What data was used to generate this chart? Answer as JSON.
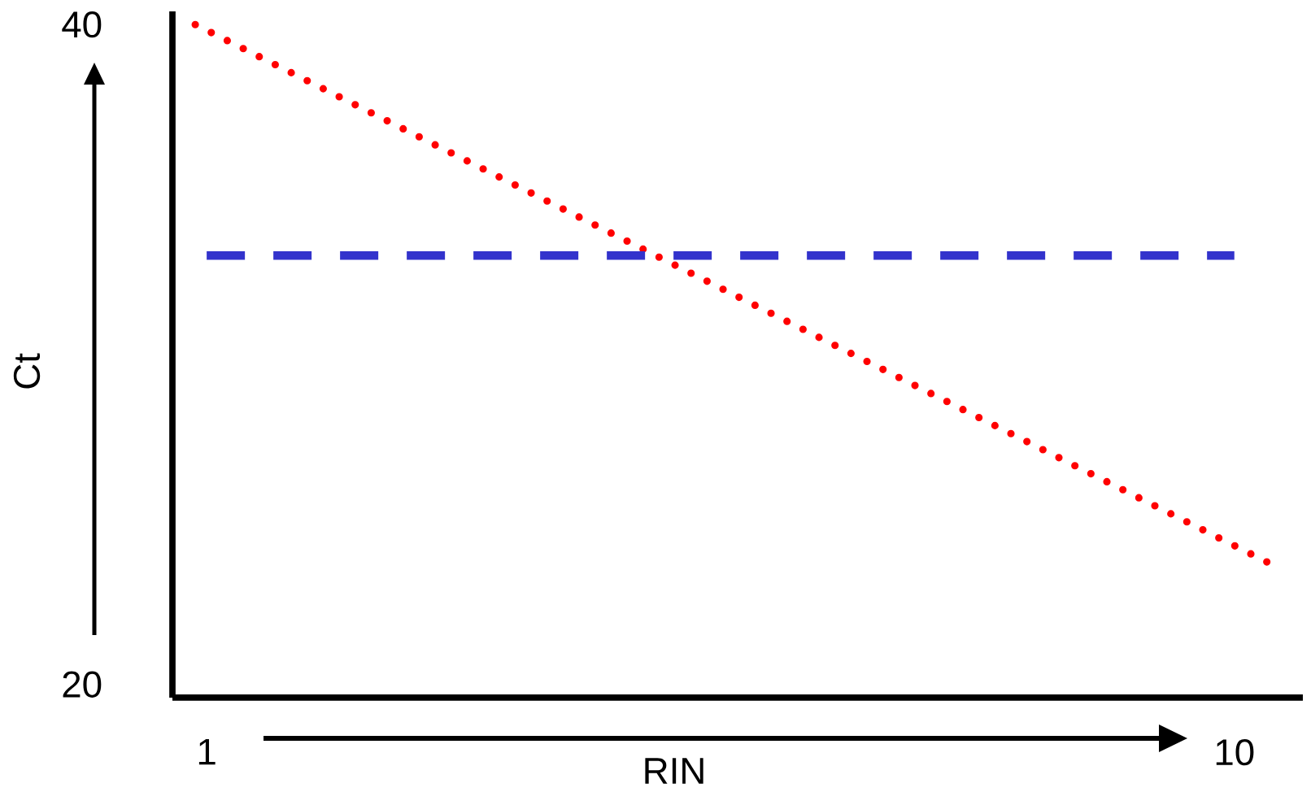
{
  "chart_data": {
    "type": "line",
    "xlabel": "RIN",
    "ylabel": "Ct",
    "x": [
      0.9,
      10.35
    ],
    "series": [
      {
        "color": "#ff0000",
        "values": [
          40,
          23.6
        ],
        "line_style": "dotted"
      }
    ],
    "xlim": [
      0.7,
      10.6
    ],
    "ylim": [
      19.6,
      40.4
    ],
    "xticks": [
      1,
      10
    ],
    "yticks": [
      20,
      40
    ],
    "ref_lines": [
      {
        "axis": "y",
        "value": 33,
        "color": "#3333cc",
        "line_style": "dashed"
      }
    ],
    "grid": false,
    "marker": "none"
  }
}
